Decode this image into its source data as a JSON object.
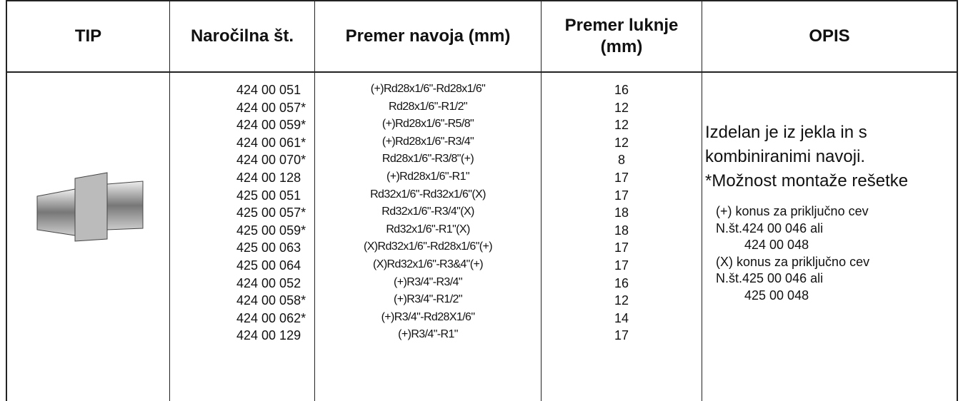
{
  "table": {
    "header": [
      "TIP",
      "Naročilna št.",
      "Premer navoja (mm)",
      "Premer luknje (mm)",
      "OPIS"
    ],
    "rows": [
      [
        "424 00 051",
        "(+)Rd28x1/6\"-Rd28x1/6\"",
        "16"
      ],
      [
        "424 00 057*",
        "Rd28x1/6\"-R1/2\"",
        "12"
      ],
      [
        "424 00 059*",
        "(+)Rd28x1/6\"-R5/8\"",
        "12"
      ],
      [
        "424 00 061*",
        "(+)Rd28x1/6\"-R3/4\"",
        "12"
      ],
      [
        "424 00 070*",
        "Rd28x1/6\"-R3/8\"(+)",
        "8"
      ],
      [
        "424 00 128",
        "(+)Rd28x1/6\"-R1\"",
        "17"
      ],
      [
        "425 00 051",
        "Rd32x1/6\"-Rd32x1/6\"(X)",
        "17"
      ],
      [
        "425 00 057*",
        "Rd32x1/6\"-R3/4\"(X)",
        "18"
      ],
      [
        "425 00 059*",
        "Rd32x1/6\"-R1\"(X)",
        "18"
      ],
      [
        "425 00 063",
        "(X)Rd32x1/6\"-Rd28x1/6\"(+)",
        "17"
      ],
      [
        "425 00 064",
        "(X)Rd32x1/6\"-R3&4\"(+)",
        "17"
      ],
      [
        "424 00 052",
        "(+)R3/4\"-R3/4\"",
        "16"
      ],
      [
        "424 00 058*",
        "(+)R3/4\"-R1/2\"",
        "12"
      ],
      [
        "424 00 062*",
        "(+)R3/4\"-Rd28X1/6\"",
        "14"
      ],
      [
        "424 00 129",
        "(+)R3/4\"-R1\"",
        "17"
      ]
    ],
    "description": [
      "Izdelan je iz jekla in s",
      "kombiniranimi navoji.",
      "*Možnost montaže rešetke"
    ],
    "notes": [
      "(+) konus za priključno cev",
      "N.št.424 00 046 ali",
      "424 00 048",
      "(X) konus za priključno cev",
      "N.št.425 00 046 ali",
      "425 00 048"
    ]
  }
}
